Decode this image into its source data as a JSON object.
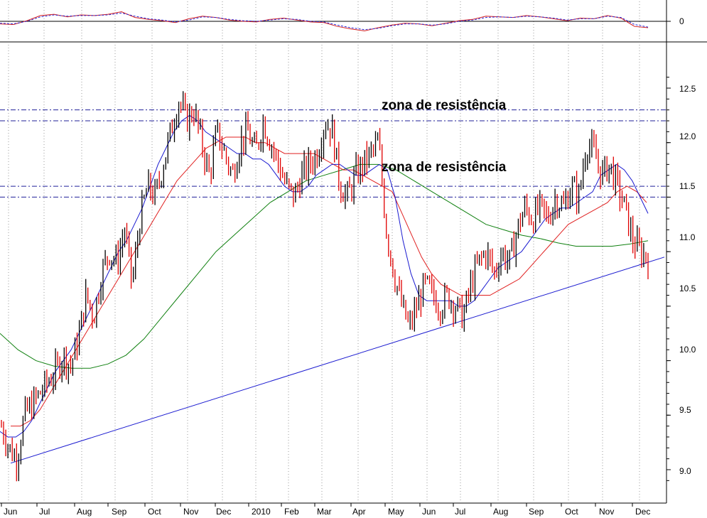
{
  "chart_data": [
    {
      "type": "line",
      "panel": "oscillator",
      "title": "",
      "y_ticks": [
        "0"
      ],
      "series": [
        {
          "values": [
            -0.2,
            -0.25,
            0.05,
            0.45,
            0.55,
            0.35,
            0.5,
            0.45,
            0.55,
            0.75,
            0.3,
            0.15,
            0.05,
            -0.1,
            0.2,
            0.4,
            0.3,
            0.1,
            0.0,
            -0.05,
            0.15,
            0.25,
            0.1,
            -0.05,
            -0.1,
            -0.4,
            -0.6,
            -0.75,
            -0.5,
            -0.3,
            -0.15,
            -0.2,
            -0.35,
            -0.15,
            0.05,
            0.15,
            0.4,
            0.35,
            0.3,
            0.45,
            0.35,
            0.2,
            0.05,
            0.25,
            0.2,
            0.45,
            0.25,
            -0.4,
            -0.5
          ]
        },
        {
          "values": [
            -0.15,
            -0.2,
            0.0,
            0.35,
            0.5,
            0.4,
            0.45,
            0.45,
            0.5,
            0.65,
            0.4,
            0.2,
            0.1,
            -0.05,
            0.1,
            0.35,
            0.3,
            0.15,
            0.05,
            0.0,
            0.1,
            0.2,
            0.15,
            0.0,
            -0.05,
            -0.3,
            -0.5,
            -0.65,
            -0.55,
            -0.35,
            -0.2,
            -0.2,
            -0.3,
            -0.2,
            0.0,
            0.1,
            0.3,
            0.35,
            0.3,
            0.4,
            0.35,
            0.25,
            0.1,
            0.2,
            0.2,
            0.4,
            0.3,
            -0.25,
            -0.45
          ]
        }
      ],
      "colors": [
        "#d42020",
        "#2a2ad8"
      ]
    },
    {
      "type": "candlestick",
      "panel": "price",
      "title": "",
      "xlabel": "",
      "ylabel": "",
      "ylim": [
        8.8,
        12.65
      ],
      "y_ticks": [
        "9.0",
        "9.5",
        "10.0",
        "10.5",
        "11.0",
        "11.5",
        "12.0",
        "12.5"
      ],
      "months": [
        "Jun",
        "Jul",
        "Aug",
        "Sep",
        "Oct",
        "Nov",
        "Dec",
        "2010",
        "Feb",
        "Mar",
        "Apr",
        "May",
        "Jun",
        "Jul",
        "Aug",
        "Sep",
        "Oct",
        "Nov",
        "Dec"
      ],
      "closes": [
        9.4,
        9.2,
        9.1,
        9.5,
        9.6,
        9.7,
        9.8,
        9.9,
        10.05,
        9.95,
        10.2,
        10.6,
        10.4,
        10.8,
        11.0,
        10.9,
        11.2,
        10.7,
        11.3,
        11.6,
        11.5,
        11.8,
        12.1,
        12.4,
        12.2,
        12.3,
        12.0,
        11.7,
        12.1,
        11.9,
        11.7,
        12.0,
        12.1,
        11.9,
        12.2,
        12.0,
        11.8,
        11.6,
        11.5,
        11.7,
        11.8,
        11.9,
        12.2,
        12.1,
        11.6,
        11.5,
        11.7,
        11.8,
        11.9,
        12.0,
        11.2,
        10.8,
        10.5,
        10.3,
        10.5,
        10.7,
        10.6,
        10.5,
        10.6,
        10.5,
        10.4,
        10.7,
        10.9,
        11.0,
        10.8,
        11.0,
        10.9,
        11.2,
        11.4,
        11.3,
        11.4,
        11.3,
        11.5,
        11.4,
        11.6,
        11.5,
        12.0,
        11.9,
        11.7,
        11.8,
        11.6,
        11.4,
        11.1,
        11.0,
        10.95
      ],
      "ma_short": [
        9.35,
        9.3,
        9.3,
        9.35,
        9.45,
        9.6,
        9.75,
        9.9,
        10.0,
        10.1,
        10.25,
        10.4,
        10.55,
        10.7,
        10.85,
        11.0,
        11.1,
        11.25,
        11.4,
        11.6,
        11.8,
        11.95,
        12.1,
        12.2,
        12.25,
        12.2,
        12.1,
        12.05,
        12.0,
        11.95,
        11.9,
        11.9,
        11.85,
        11.85,
        11.8,
        11.7,
        11.6,
        11.55,
        11.55,
        11.6,
        11.7,
        11.75,
        11.8,
        11.8,
        11.75,
        11.7,
        11.7,
        11.75,
        11.8,
        11.75,
        11.5,
        11.1,
        10.8,
        10.6,
        10.55,
        10.55,
        10.55,
        10.55,
        10.5,
        10.5,
        10.55,
        10.65,
        10.75,
        10.85,
        10.9,
        10.95,
        11.0,
        11.1,
        11.2,
        11.3,
        11.35,
        11.4,
        11.4,
        11.45,
        11.5,
        11.55,
        11.7,
        11.75,
        11.8,
        11.75,
        11.65,
        11.5,
        11.35
      ],
      "ma_mid": [
        9.4,
        9.4,
        9.45,
        9.55,
        9.7,
        9.85,
        10.0,
        10.15,
        10.3,
        10.45,
        10.6,
        10.75,
        10.9,
        11.05,
        11.2,
        11.35,
        11.5,
        11.65,
        11.75,
        11.85,
        11.95,
        12.0,
        12.05,
        12.05,
        12.05,
        12.0,
        12.0,
        11.95,
        11.9,
        11.9,
        11.9,
        11.9,
        11.85,
        11.8,
        11.75,
        11.75,
        11.7,
        11.65,
        11.6,
        11.55,
        11.35,
        11.15,
        10.95,
        10.8,
        10.7,
        10.65,
        10.6,
        10.6,
        10.6,
        10.6,
        10.65,
        10.7,
        10.75,
        10.85,
        10.95,
        11.05,
        11.15,
        11.25,
        11.3,
        11.35,
        11.4,
        11.45,
        11.55,
        11.6,
        11.55,
        11.45
      ],
      "ma_long": [
        10.25,
        10.1,
        10.0,
        9.95,
        9.93,
        9.93,
        9.97,
        10.05,
        10.2,
        10.4,
        10.6,
        10.8,
        11.0,
        11.15,
        11.3,
        11.45,
        11.55,
        11.65,
        11.7,
        11.75,
        11.8,
        11.8,
        11.75,
        11.65,
        11.55,
        11.45,
        11.35,
        11.25,
        11.2,
        11.15,
        11.12,
        11.08,
        11.05,
        11.05,
        11.05,
        11.07,
        11.1
      ],
      "trendline": [
        [
          0,
          9.06
        ],
        [
          1,
          10.95
        ]
      ],
      "resistance_zones": [
        {
          "label": "zona de resistência",
          "upper": 12.3,
          "lower": 12.2
        },
        {
          "label": "zona de resistência",
          "upper": 11.6,
          "lower": 11.5
        }
      ],
      "colors": {
        "bull": "#000000",
        "bear": "#e00000",
        "ma_short": "#1a1ad0",
        "ma_mid": "#e02020",
        "ma_long": "#108010",
        "trendline": "#1a1ad0",
        "resistance": "#20209a"
      }
    }
  ]
}
